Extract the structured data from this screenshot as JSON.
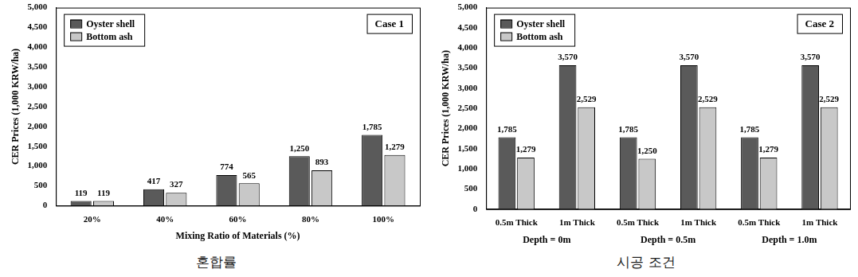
{
  "chart_data": [
    {
      "type": "bar",
      "annotation": "Case 1",
      "caption": "혼합률",
      "x_label": "Mixing Ratio of Materials (%)",
      "y_label": "CER Prices (1,000 KRW/ha)",
      "categories": [
        "20%",
        "40%",
        "60%",
        "80%",
        "100%"
      ],
      "series": [
        {
          "name": "Oyster shell",
          "color": "#5a5a5a",
          "values": [
            119,
            417,
            774,
            1250,
            1785
          ],
          "value_labels": [
            "119",
            "417",
            "774",
            "1,250",
            "1,785"
          ]
        },
        {
          "name": "Bottom ash",
          "color": "#c8c8c8",
          "values": [
            119,
            327,
            565,
            893,
            1279
          ],
          "value_labels": [
            "119",
            "327",
            "565",
            "893",
            "1,279"
          ]
        }
      ],
      "ylim": [
        0,
        5000
      ],
      "yticks": [
        0,
        500,
        {
          "value": 1000,
          "label": "1,000"
        },
        {
          "value": 1500,
          "label": "1,500"
        },
        {
          "value": 2000,
          "label": "2,000"
        },
        {
          "value": 2500,
          "label": "2,500"
        },
        {
          "value": 3000,
          "label": "3,000"
        },
        {
          "value": 3500,
          "label": "3,500"
        },
        {
          "value": 4000,
          "label": "4,000"
        },
        {
          "value": 4500,
          "label": "4,500"
        },
        {
          "value": 5000,
          "label": "5,000"
        }
      ],
      "grid": false,
      "legend": "top-left",
      "data_labels": true
    },
    {
      "type": "bar",
      "annotation": "Case 2",
      "caption": "시공 조건",
      "y_label": "CER Prices (1,000 KRW/ha)",
      "categories": [
        "0.5m Thick",
        "1m Thick",
        "0.5m Thick",
        "1m Thick",
        "0.5m Thick",
        "1m Thick"
      ],
      "category_groups": [
        "Depth = 0m",
        "Depth = 0.5m",
        "Depth = 1.0m"
      ],
      "series": [
        {
          "name": "Oyster shell",
          "color": "#5a5a5a",
          "values": [
            1785,
            3570,
            1785,
            3570,
            1785,
            3570
          ],
          "value_labels": [
            "1,785",
            "3,570",
            "1,785",
            "3,570",
            "1,785",
            "3,570"
          ]
        },
        {
          "name": "Bottom ash",
          "color": "#c8c8c8",
          "values": [
            1279,
            2529,
            1250,
            2529,
            1279,
            2529
          ],
          "value_labels": [
            "1,279",
            "2,529",
            "1,250",
            "2,529",
            "1,279",
            "2,529"
          ]
        }
      ],
      "ylim": [
        0,
        5000
      ],
      "yticks": [
        0,
        500,
        {
          "value": 1000,
          "label": "1,000"
        },
        {
          "value": 1500,
          "label": "1,500"
        },
        {
          "value": 2000,
          "label": "2,000"
        },
        {
          "value": 2500,
          "label": "2,500"
        },
        {
          "value": 3000,
          "label": "3,000"
        },
        {
          "value": 3500,
          "label": "3,500"
        },
        {
          "value": 4000,
          "label": "4,000"
        },
        {
          "value": 4500,
          "label": "4,500"
        },
        {
          "value": 5000,
          "label": "5,000"
        }
      ],
      "grid": false,
      "legend": "top-left",
      "data_labels": true
    }
  ]
}
